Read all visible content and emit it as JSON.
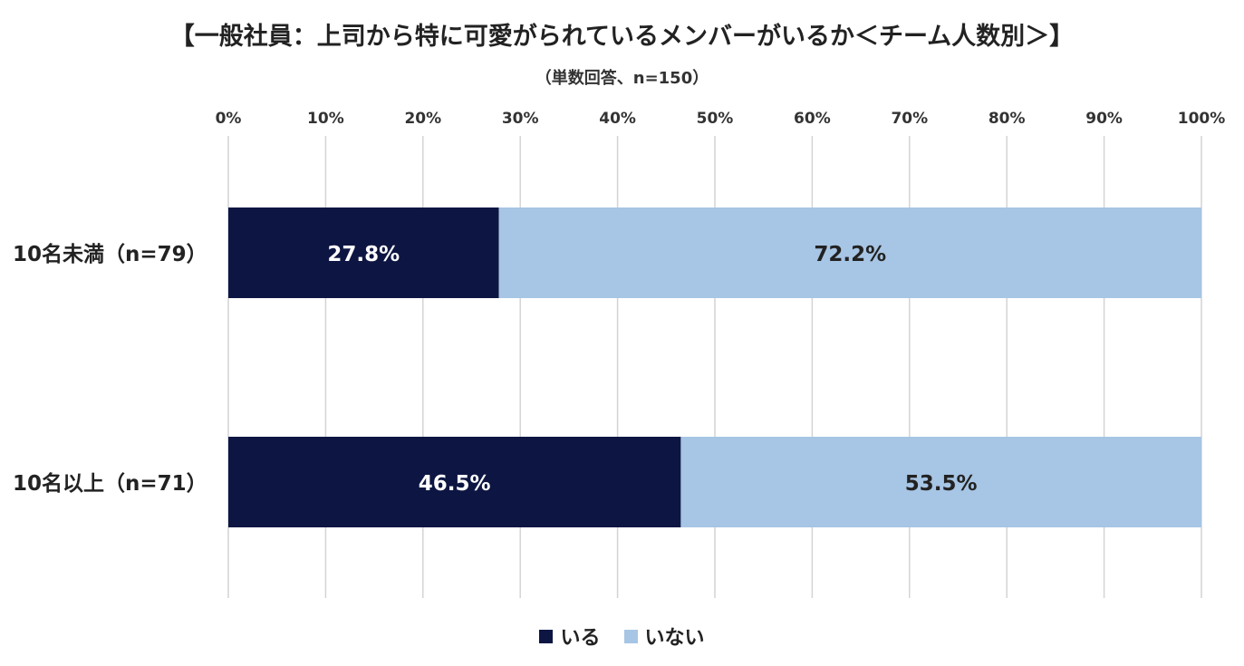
{
  "title": "【一般社員：上司から特に可愛がられているメンバーがいるか＜チーム人数別＞】",
  "subtitle": "（単数回答、n=150）",
  "colors": {
    "iru": "#0d1642",
    "inai": "#a7c5e4",
    "grid": "#d4d4d4"
  },
  "chart_data": {
    "type": "bar",
    "orientation": "horizontal",
    "stacked": "percent",
    "categories": [
      "10名未満（n=79）",
      "10名以上（n=71）"
    ],
    "series": [
      {
        "name": "いる",
        "values": [
          27.8,
          46.5
        ],
        "labels": [
          "27.8%",
          "46.5%"
        ]
      },
      {
        "name": "いない",
        "values": [
          72.2,
          53.5
        ],
        "labels": [
          "72.2%",
          "53.5%"
        ]
      }
    ],
    "xlim": [
      0,
      100
    ],
    "xticks": [
      "0%",
      "10%",
      "20%",
      "30%",
      "40%",
      "50%",
      "60%",
      "70%",
      "80%",
      "90%",
      "100%"
    ],
    "grid": true,
    "legend": "bottom"
  }
}
